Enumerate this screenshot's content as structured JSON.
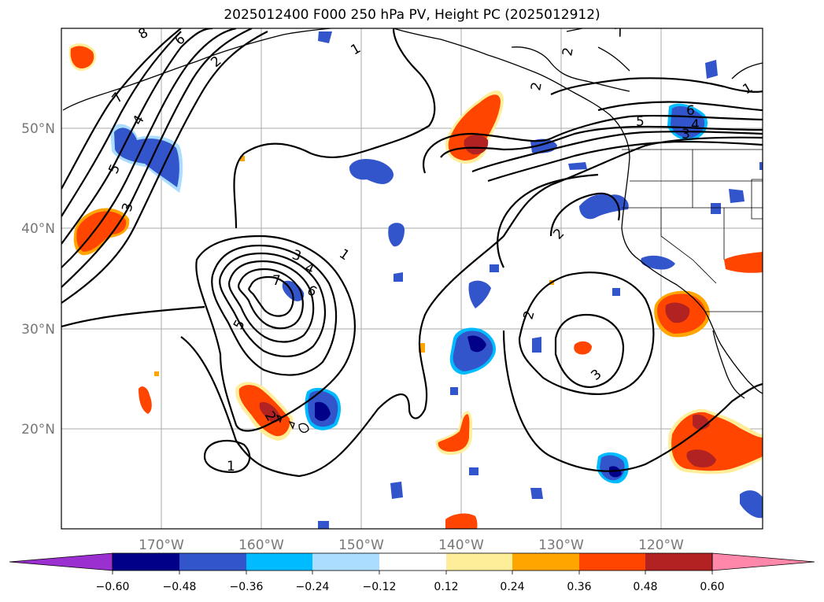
{
  "title": "2025012400 F000 250 hPa PV, Height PC (2025012912)",
  "longitude_labels": [
    "170°W",
    "160°W",
    "150°W",
    "140°W",
    "130°W",
    "120°W"
  ],
  "latitude_labels": [
    "50°N",
    "40°N",
    "30°N",
    "20°N"
  ],
  "colorbar": {
    "tick_labels": [
      "−0.60",
      "−0.48",
      "−0.36",
      "−0.24",
      "−0.12",
      "0.12",
      "0.24",
      "0.36",
      "0.48",
      "0.60"
    ],
    "under_color": "#9b30d0",
    "over_color": "#ff88aa",
    "colors": [
      "#000088",
      "#3355cc",
      "#00bbff",
      "#aaddff",
      "#ffffff",
      "#ffee99",
      "#ffa500",
      "#ff4500",
      "#b22222"
    ]
  },
  "contour_labels": [
    "1",
    "2",
    "3",
    "4",
    "5",
    "6",
    "7",
    "8",
    "1",
    "2",
    "3",
    "4",
    "5",
    "6",
    "7",
    "1",
    "2",
    "3",
    "4",
    "5",
    "6",
    "7",
    "2",
    "2",
    "3",
    "1",
    "2"
  ]
}
